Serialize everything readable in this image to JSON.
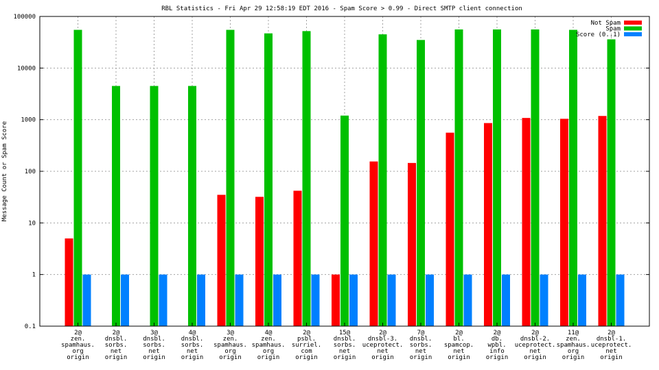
{
  "chart_data": {
    "type": "bar",
    "title": "RBL Statistics - Fri Apr 29 12:58:19 EDT 2016 - Spam Score > 0.99 - Direct SMTP client connection",
    "xlabel": "",
    "ylabel": "Message Count or Spam Score",
    "yscale": "log",
    "ylim": [
      0.1,
      100000
    ],
    "yticks": [
      "0.1",
      "1",
      "10",
      "100",
      "1000",
      "10000",
      "100000"
    ],
    "grid": true,
    "legend_position": "top-right",
    "categories": [
      [
        "2@",
        "zen.",
        "spamhaus.",
        "org",
        "origin"
      ],
      [
        "2@",
        "dnsbl.",
        "sorbs.",
        "net",
        "origin"
      ],
      [
        "3@",
        "dnsbl.",
        "sorbs.",
        "net",
        "origin"
      ],
      [
        "4@",
        "dnsbl.",
        "sorbs.",
        "net",
        "origin"
      ],
      [
        "3@",
        "zen.",
        "spamhaus.",
        "org",
        "origin"
      ],
      [
        "4@",
        "zen.",
        "spamhaus.",
        "org",
        "origin"
      ],
      [
        "2@",
        "psbl.",
        "surriel.",
        "com",
        "origin"
      ],
      [
        "15@",
        "dnsbl.",
        "sorbs.",
        "net",
        "origin"
      ],
      [
        "2@",
        "dnsbl-3.",
        "uceprotect.",
        "net",
        "origin"
      ],
      [
        "7@",
        "dnsbl.",
        "sorbs.",
        "net",
        "origin"
      ],
      [
        "2@",
        "bl.",
        "spamcop.",
        "net",
        "origin"
      ],
      [
        "2@",
        "db.",
        "wpbl.",
        "info",
        "origin"
      ],
      [
        "2@",
        "dnsbl-2.",
        "uceprotect.",
        "net",
        "origin"
      ],
      [
        "11@",
        "zen.",
        "spamhaus.",
        "org",
        "origin"
      ],
      [
        "2@",
        "dnsbl-1.",
        "uceprotect.",
        "net",
        "origin"
      ]
    ],
    "series": [
      {
        "name": "Not Spam",
        "color": "#ff0000",
        "values": [
          5,
          null,
          null,
          null,
          35,
          32,
          42,
          1,
          155,
          145,
          560,
          860,
          1080,
          1040,
          1180
        ]
      },
      {
        "name": "Spam",
        "color": "#00c000",
        "values": [
          55000,
          4500,
          4500,
          4500,
          55000,
          47000,
          52000,
          1200,
          45000,
          35000,
          56000,
          56000,
          56000,
          55000,
          36000
        ]
      },
      {
        "name": "Score (0..1)",
        "color": "#0080ff",
        "values": [
          1,
          1,
          1,
          1,
          1,
          1,
          1,
          1,
          1,
          1,
          1,
          1,
          1,
          1,
          1
        ]
      }
    ]
  }
}
